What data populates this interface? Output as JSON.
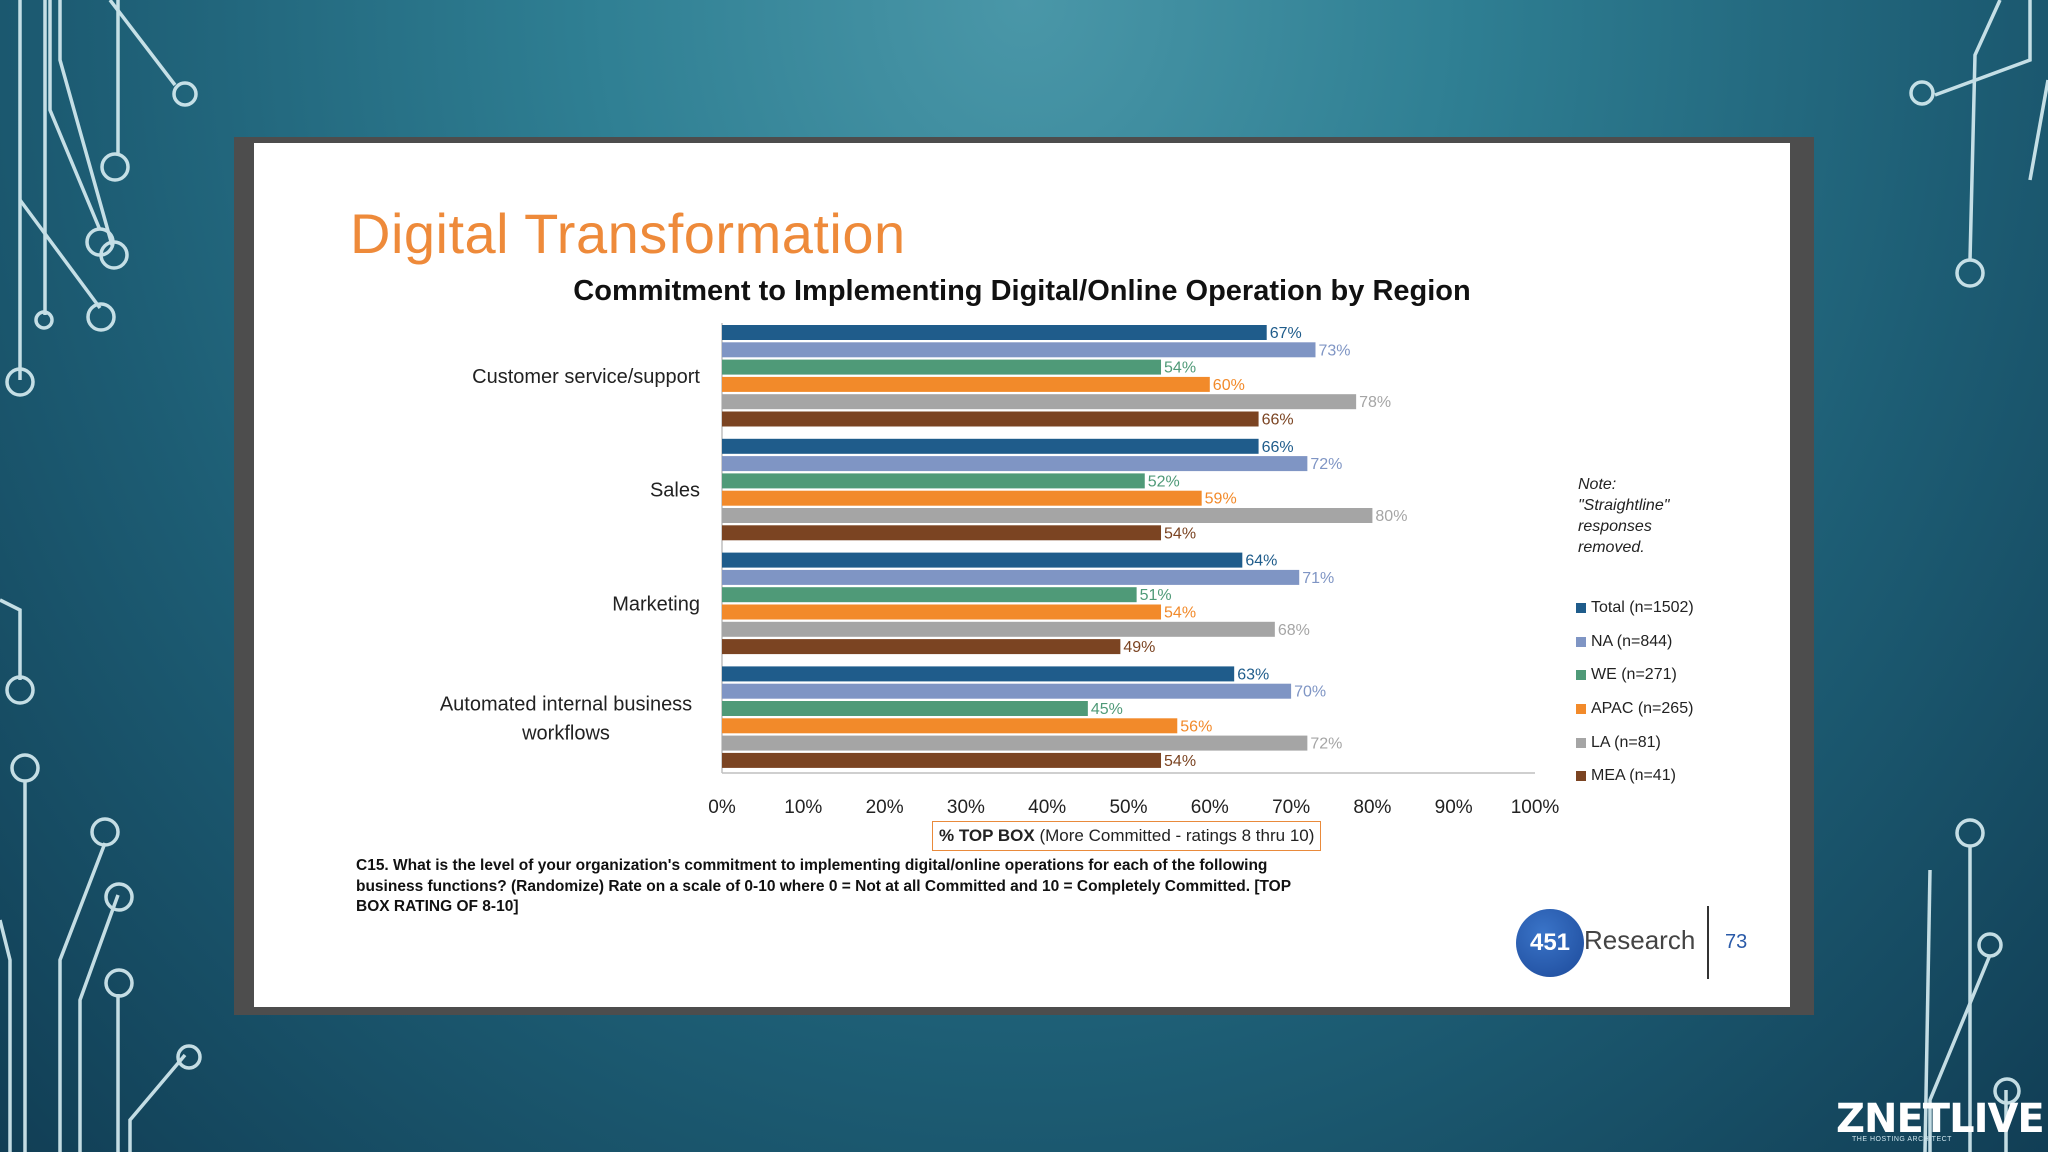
{
  "slide": {
    "title": "Digital Transformation",
    "note": "Note: \"Straightline\" responses removed.",
    "question": "C15. What is the level of your organization's commitment to implementing digital/online operations for each of the following business functions? (Randomize) Rate on a scale of 0-10 where 0 = Not at all Committed and 10 = Completely Committed. [TOP BOX RATING OF 8-10]",
    "logo_number": "451",
    "logo_text": "Research",
    "page_number": "73"
  },
  "brand": {
    "name": "ZNETLIVE",
    "tagline": "THE HOSTING ARCHITECT"
  },
  "colors": {
    "title_orange": "#ee8a3a",
    "series": [
      "#1f5c8b",
      "#7f95c4",
      "#4f9a78",
      "#f28a2a",
      "#a5a5a5",
      "#7b4422"
    ]
  },
  "chart_data": {
    "type": "bar",
    "orientation": "horizontal",
    "title": "Commitment to Implementing Digital/Online Operation by Region",
    "xlabel_bold": "% TOP BOX",
    "xlabel_rest": "(More Committed - ratings 8 thru 10)",
    "categories": [
      "Customer service/support",
      "Sales",
      "Marketing",
      "Automated internal business workflows"
    ],
    "series": [
      {
        "name": "Total (n=1502)",
        "values": [
          67,
          66,
          64,
          63
        ]
      },
      {
        "name": "NA (n=844)",
        "values": [
          73,
          72,
          71,
          70
        ]
      },
      {
        "name": "WE (n=271)",
        "values": [
          54,
          52,
          51,
          45
        ]
      },
      {
        "name": "APAC (n=265)",
        "values": [
          60,
          59,
          54,
          56
        ]
      },
      {
        "name": "LA (n=81)",
        "values": [
          78,
          80,
          68,
          72
        ]
      },
      {
        "name": "MEA (n=41)",
        "values": [
          66,
          54,
          49,
          54
        ]
      }
    ],
    "xlim": [
      0,
      100
    ],
    "xticks": [
      "0%",
      "10%",
      "20%",
      "30%",
      "40%",
      "50%",
      "60%",
      "70%",
      "80%",
      "90%",
      "100%"
    ],
    "value_suffix": "%",
    "grid": false,
    "legend_position": "right"
  }
}
